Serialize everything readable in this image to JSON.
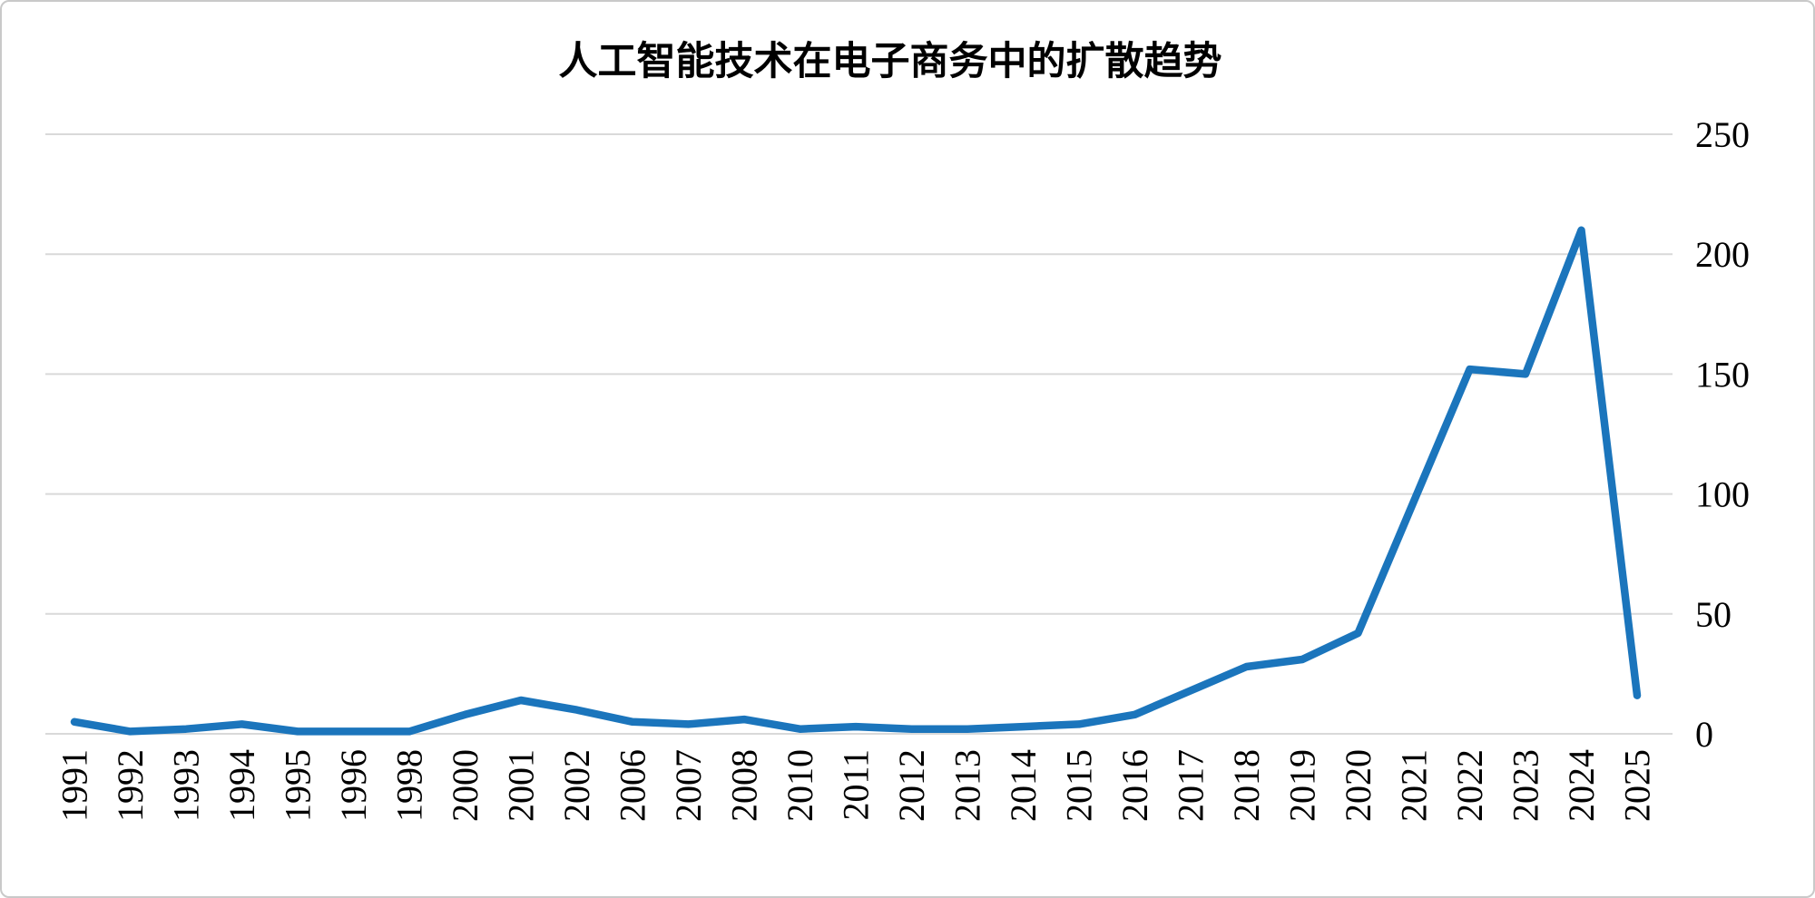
{
  "chart_data": {
    "type": "line",
    "title": "人工智能技术在电子商务中的扩散趋势",
    "categories": [
      "1991",
      "1992",
      "1993",
      "1994",
      "1995",
      "1996",
      "1998",
      "2000",
      "2001",
      "2002",
      "2006",
      "2007",
      "2008",
      "2010",
      "2011",
      "2012",
      "2013",
      "2014",
      "2015",
      "2016",
      "2017",
      "2018",
      "2019",
      "2020",
      "2021",
      "2022",
      "2023",
      "2024",
      "2025"
    ],
    "values": [
      5,
      1,
      2,
      4,
      1,
      1,
      1,
      8,
      14,
      10,
      5,
      4,
      6,
      2,
      3,
      2,
      2,
      3,
      4,
      8,
      18,
      28,
      31,
      42,
      97,
      152,
      150,
      210,
      16
    ],
    "xlabel": "",
    "ylabel": "",
    "ylim": [
      0,
      250
    ],
    "y_ticks": [
      0,
      50,
      100,
      150,
      200,
      250
    ],
    "y_axis_side": "right",
    "x_tick_rotation_deg": -90,
    "grid": "horizontal",
    "legend": "none",
    "line_color": "#1B75BC",
    "gridline_color": "#D9D9D9",
    "text_color": "#000000",
    "background_color": "#FFFFFF",
    "border_color": "#C9C9C9"
  }
}
